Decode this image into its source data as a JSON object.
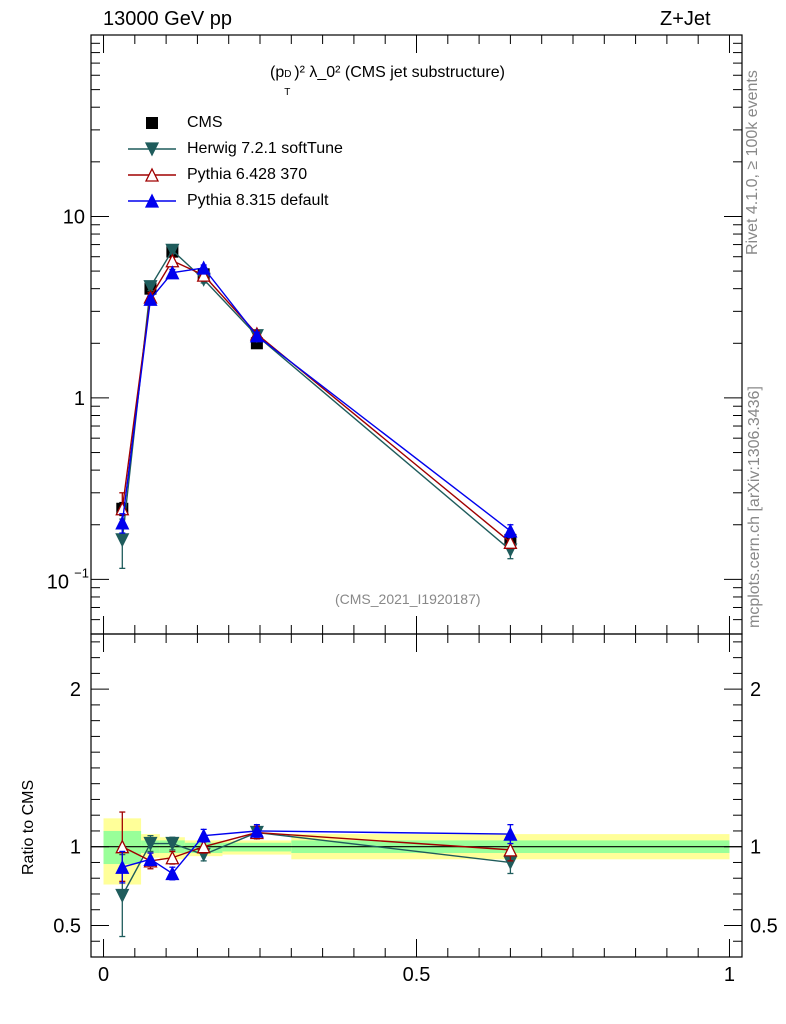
{
  "header": {
    "left": "13000 GeV pp",
    "right": "Z+Jet"
  },
  "side_labels": {
    "top": "Rivet 4.1.0, ≥ 100k events",
    "bottom": "mcplots.cern.ch [arXiv:1306.3436]"
  },
  "chart_data": [
    {
      "type": "line",
      "title_main": "(p",
      "title_sub": "T",
      "title_sup": "D",
      "title_rest": ")² λ_0² (CMS jet substructure)",
      "watermark": "(CMS_2021_I1920187)",
      "yscale": "log",
      "ylim": [
        0.05,
        100
      ],
      "xlim": [
        -0.02,
        1.02
      ],
      "ytick_labels": [
        "10",
        "1"
      ],
      "ytick_minus1_base": "10",
      "ytick_minus1_exp": "−1",
      "legend": [
        "CMS",
        "Herwig 7.2.1 softTune",
        "Pythia 6.428 370",
        "Pythia 8.315 default"
      ],
      "x": [
        0.03,
        0.075,
        0.11,
        0.16,
        0.245,
        0.65
      ],
      "series": [
        {
          "name": "CMS",
          "color": "#000000",
          "marker": "square",
          "values": [
            0.245,
            4.0,
            6.4,
            4.8,
            2.0,
            0.165
          ],
          "errors": [
            0.02,
            0.15,
            0.2,
            0.15,
            0.08,
            0.012
          ]
        },
        {
          "name": "Herwig 7.2.1 softTune",
          "color": "#1f5c5c",
          "marker": "triangle-down",
          "values": [
            0.165,
            4.1,
            6.5,
            4.5,
            2.2,
            0.145
          ],
          "errors": [
            0.05,
            0.2,
            0.25,
            0.2,
            0.1,
            0.015
          ]
        },
        {
          "name": "Pythia 6.428 370",
          "color": "#a00000",
          "marker": "triangle-up-open",
          "values": [
            0.245,
            3.6,
            5.7,
            4.75,
            2.25,
            0.16
          ],
          "errors": [
            0.055,
            0.2,
            0.25,
            0.2,
            0.1,
            0.012
          ]
        },
        {
          "name": "Pythia 8.315 default",
          "color": "#0000ee",
          "marker": "triangle-up",
          "values": [
            0.205,
            3.5,
            4.9,
            5.2,
            2.2,
            0.185
          ],
          "errors": [
            0.025,
            0.15,
            0.2,
            0.2,
            0.1,
            0.015
          ]
        }
      ]
    },
    {
      "type": "line",
      "ylabel": "Ratio to CMS",
      "ylim": [
        0.3,
        2.35
      ],
      "xlim": [
        -0.02,
        1.02
      ],
      "ytick_labels": [
        "2",
        "1",
        "0.5"
      ],
      "xtick_labels": [
        "0",
        "0.5",
        "1"
      ],
      "x": [
        0.03,
        0.075,
        0.11,
        0.16,
        0.245,
        0.65
      ],
      "bands": {
        "edges": [
          0.0,
          0.06,
          0.09,
          0.13,
          0.19,
          0.3,
          1.0
        ],
        "outer": [
          [
            0.76,
            1.18
          ],
          [
            0.93,
            1.08
          ],
          [
            0.92,
            1.06
          ],
          [
            0.94,
            1.04
          ],
          [
            0.95,
            1.04
          ],
          [
            0.92,
            1.08
          ]
        ],
        "inner": [
          [
            0.89,
            1.1
          ],
          [
            0.96,
            1.04
          ],
          [
            0.96,
            1.04
          ],
          [
            0.96,
            1.025
          ],
          [
            0.97,
            1.025
          ],
          [
            0.96,
            1.04
          ]
        ],
        "outer_color": "#ffff99",
        "inner_color": "#99ff99"
      },
      "series": [
        {
          "name": "Herwig 7.2.1 softTune",
          "color": "#1f5c5c",
          "marker": "triangle-down",
          "values": [
            0.69,
            1.02,
            1.02,
            0.95,
            1.09,
            0.9
          ],
          "errors": [
            0.26,
            0.05,
            0.04,
            0.04,
            0.04,
            0.07
          ]
        },
        {
          "name": "Pythia 6.428 370",
          "color": "#a00000",
          "marker": "triangle-up-open",
          "values": [
            1.0,
            0.91,
            0.93,
            1.0,
            1.09,
            0.98
          ],
          "errors": [
            0.22,
            0.05,
            0.04,
            0.04,
            0.04,
            0.07
          ]
        },
        {
          "name": "Pythia 8.315 default",
          "color": "#0000ee",
          "marker": "triangle-up",
          "values": [
            0.87,
            0.92,
            0.83,
            1.07,
            1.1,
            1.08
          ],
          "errors": [
            0.1,
            0.04,
            0.04,
            0.04,
            0.04,
            0.06
          ]
        }
      ]
    }
  ]
}
